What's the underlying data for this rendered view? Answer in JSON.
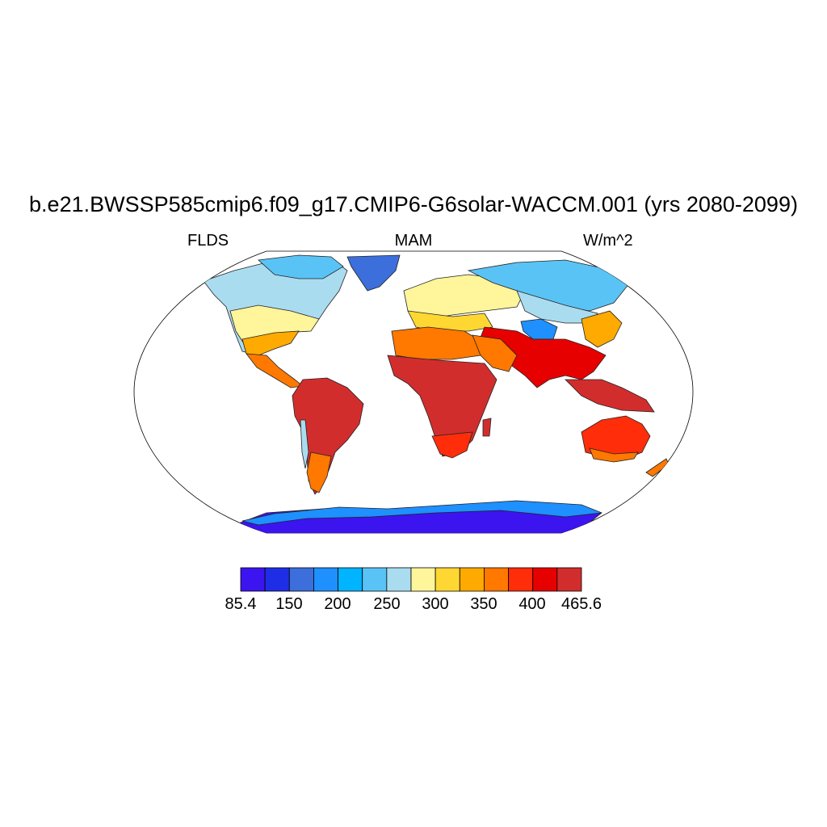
{
  "figure": {
    "title": "b.e21.BWSSP585cmip6.f09_g17.CMIP6-G6solar-WACCM.001 (yrs 2080-2099)",
    "left_label": "FLDS",
    "center_label": "MAM",
    "right_label": "W/m^2"
  },
  "map": {
    "projection": "Robinson",
    "variable": "FLDS",
    "season": "MAM",
    "units": "W/m^2"
  },
  "colorbar": {
    "colors": [
      "#3c14f0",
      "#1e2ee6",
      "#3c6edc",
      "#1e90ff",
      "#00b4ff",
      "#5ac3f5",
      "#aadcf0",
      "#fff59a",
      "#ffd732",
      "#ffaa00",
      "#ff7800",
      "#ff2d0a",
      "#e60000",
      "#d22d2d"
    ],
    "labels": [
      "85.4",
      "150",
      "200",
      "250",
      "300",
      "350",
      "400",
      "465.6"
    ],
    "range": [
      85.4,
      465.6
    ]
  }
}
